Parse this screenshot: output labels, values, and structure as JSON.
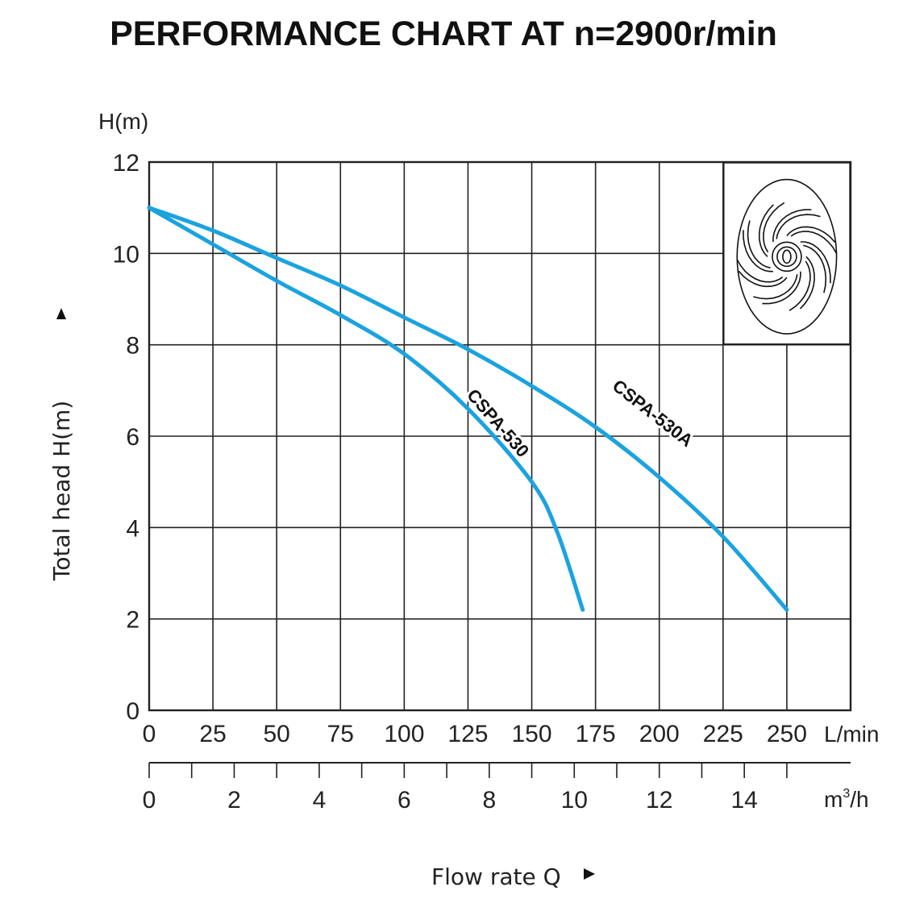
{
  "chart_data": {
    "type": "line",
    "title": "PERFORMANCE CHART AT n=2900r/min",
    "xlabel": "Flow rate  Q",
    "ylabel": "Total  head H(m)",
    "y_unit_label": "H(m)",
    "x_unit_primary": "L/min",
    "x_unit_secondary_base": "m",
    "x_unit_secondary_sup": "3",
    "x_unit_secondary_tail": "/h",
    "xlim": [
      0,
      275
    ],
    "ylim": [
      0,
      12
    ],
    "grid": true,
    "x_ticks": [
      0,
      25,
      50,
      75,
      100,
      125,
      150,
      175,
      200,
      225,
      250
    ],
    "x_tick_labels": [
      "0",
      "25",
      "50",
      "75",
      "100",
      "125",
      "150",
      "175",
      "200",
      "225",
      "250"
    ],
    "y_ticks": [
      0,
      2,
      4,
      6,
      8,
      10,
      12
    ],
    "y_tick_labels": [
      "0",
      "2",
      "4",
      "6",
      "8",
      "10",
      "12"
    ],
    "secondary_axis": {
      "unit": "m3/h",
      "range": [
        0,
        16
      ],
      "minor_ticks": [
        0,
        1,
        2,
        3,
        4,
        5,
        6,
        7,
        8,
        9,
        10,
        11,
        12,
        13,
        14,
        15
      ],
      "labeled_ticks": [
        0,
        2,
        4,
        6,
        8,
        10,
        12,
        14
      ],
      "labels": [
        "0",
        "2",
        "4",
        "6",
        "8",
        "10",
        "12",
        "14"
      ]
    },
    "series": [
      {
        "name": "CSPA-530",
        "color": "#1ba3de",
        "x": [
          0,
          25,
          50,
          75,
          100,
          125,
          150,
          160,
          170
        ],
        "y": [
          11.0,
          10.2,
          9.4,
          8.65,
          7.8,
          6.6,
          5.0,
          3.9,
          2.2
        ]
      },
      {
        "name": "CSPA-530A",
        "color": "#1ba3de",
        "x": [
          0,
          25,
          50,
          75,
          100,
          125,
          150,
          175,
          200,
          225,
          250
        ],
        "y": [
          11.0,
          10.5,
          9.9,
          9.3,
          8.6,
          7.9,
          7.1,
          6.2,
          5.1,
          3.8,
          2.2
        ]
      }
    ],
    "annotations": [
      {
        "text": "CSPA-530",
        "series": "CSPA-530",
        "x": 135,
        "y": 6.2
      },
      {
        "text": "CSPA-530A",
        "series": "CSPA-530A",
        "x": 196,
        "y": 6.4
      }
    ],
    "inset_image": "impeller-drawing",
    "legend": "none"
  }
}
